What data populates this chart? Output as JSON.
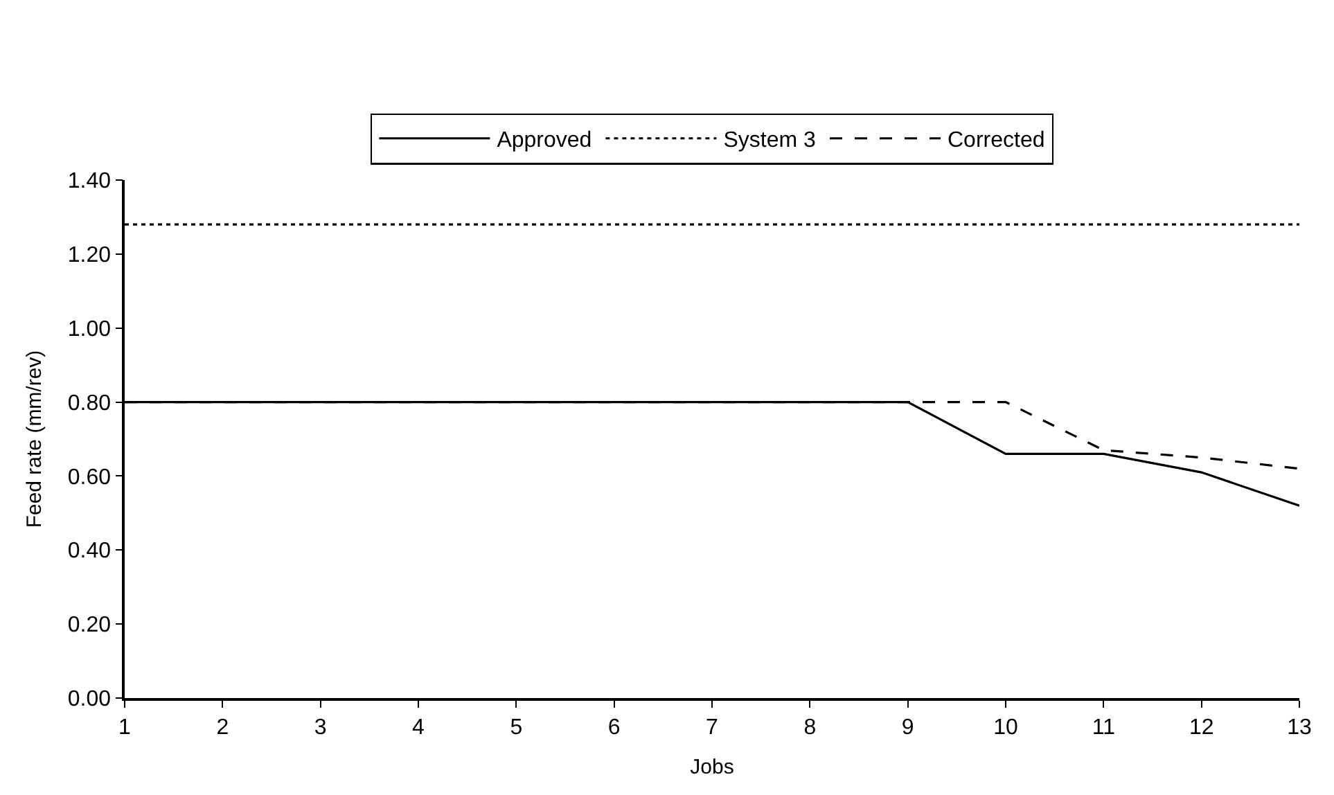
{
  "chart_data": {
    "type": "line",
    "xlabel": "Jobs",
    "ylabel": "Feed rate (mm/rev)",
    "x": [
      1,
      2,
      3,
      4,
      5,
      6,
      7,
      8,
      9,
      10,
      11,
      12,
      13
    ],
    "series": [
      {
        "name": "Approved",
        "color": "#000000",
        "line_style": "solid",
        "values": [
          0.8,
          0.8,
          0.8,
          0.8,
          0.8,
          0.8,
          0.8,
          0.8,
          0.8,
          0.66,
          0.66,
          0.61,
          0.52
        ]
      },
      {
        "name": "System 3",
        "color": "#000000",
        "line_style": "dotted",
        "values": [
          1.28,
          1.28,
          1.28,
          1.28,
          1.28,
          1.28,
          1.28,
          1.28,
          1.28,
          1.28,
          1.28,
          1.28,
          1.28
        ]
      },
      {
        "name": "Corrected",
        "color": "#000000",
        "line_style": "dashed",
        "values": [
          0.8,
          0.8,
          0.8,
          0.8,
          0.8,
          0.8,
          0.8,
          0.8,
          0.8,
          0.8,
          0.67,
          0.65,
          0.62
        ]
      }
    ],
    "xlim": [
      1,
      13
    ],
    "xticks": [
      1,
      2,
      3,
      4,
      5,
      6,
      7,
      8,
      9,
      10,
      11,
      12,
      13
    ],
    "ylim": [
      0,
      1.4
    ],
    "yticks": [
      {
        "value": 0,
        "label": "0.00"
      },
      {
        "value": 0.2,
        "label": "0.20"
      },
      {
        "value": 0.4,
        "label": "0.40"
      },
      {
        "value": 0.6,
        "label": "0.60"
      },
      {
        "value": 0.8,
        "label": "0.80"
      },
      {
        "value": 1.0,
        "label": "1.00"
      },
      {
        "value": 1.2,
        "label": "1.20"
      },
      {
        "value": 1.4,
        "label": "1.40"
      }
    ],
    "grid": false,
    "legend": "top",
    "marker": "none"
  }
}
